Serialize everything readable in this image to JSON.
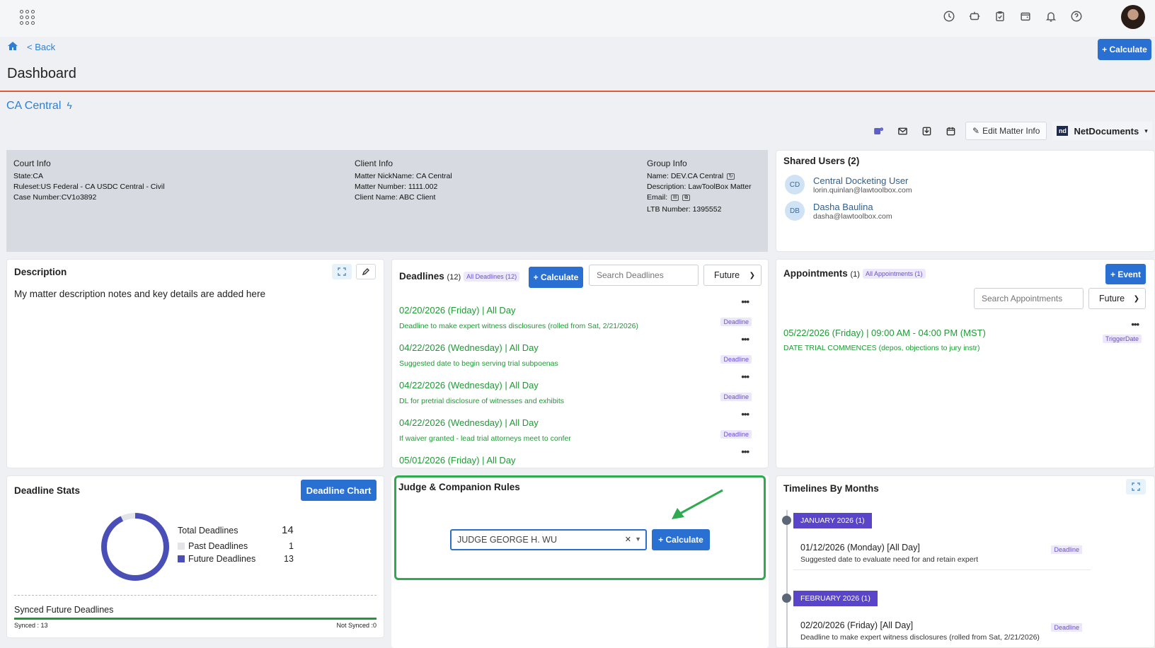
{
  "header": {
    "back_label": "< Back",
    "calculate_label": "+ Calculate",
    "page_title": "Dashboard",
    "matter_title": "CA Central",
    "icons": [
      "clock-icon",
      "robot-icon",
      "clipboard-icon",
      "wallet-icon",
      "bell-icon",
      "help-icon"
    ]
  },
  "actions": {
    "edit_label": "Edit Matter Info",
    "nd_logo": "nd",
    "nd_label": "NetDocuments"
  },
  "info": {
    "court": {
      "heading": "Court Info",
      "state": "State:CA",
      "ruleset": "Ruleset:US Federal - CA USDC Central - Civil",
      "case_number": "Case Number:CV1o3892"
    },
    "client": {
      "heading": "Client Info",
      "nickname": "Matter NickName: CA Central",
      "matter_number": "Matter Number: 1111.002",
      "client_name": "Client Name: ABC Client"
    },
    "group": {
      "heading": "Group Info",
      "name": "Name: DEV.CA Central",
      "description": "Description: LawToolBox Matter",
      "email": "Email:",
      "ltb_number": "LTB Number: 1395552"
    }
  },
  "shared_users": {
    "title": "Shared Users",
    "count": "(2)",
    "users": [
      {
        "initials": "CD",
        "name": "Central Docketing User",
        "email": "lorin.quinlan@lawtoolbox.com"
      },
      {
        "initials": "DB",
        "name": "Dasha Baulina",
        "email": "dasha@lawtoolbox.com"
      }
    ]
  },
  "description": {
    "title": "Description",
    "text": "My matter description notes and key details are added here"
  },
  "deadlines": {
    "title": "Deadlines",
    "count": "(12)",
    "all_pill": "All Deadlines (12)",
    "calc_label": "+ Calculate",
    "search_placeholder": "Search Deadlines",
    "filter": "Future",
    "items": [
      {
        "date": "02/20/2026 (Friday)  |   All Day",
        "desc": "Deadline to make expert witness disclosures (rolled from Sat, 2/21/2026)",
        "tag": "Deadline"
      },
      {
        "date": "04/22/2026 (Wednesday)  |   All Day",
        "desc": "Suggested date to begin serving trial subpoenas",
        "tag": "Deadline"
      },
      {
        "date": "04/22/2026 (Wednesday)  |   All Day",
        "desc": "DL for pretrial disclosure of witnesses and exhibits",
        "tag": "Deadline"
      },
      {
        "date": "04/22/2026 (Wednesday)  |   All Day",
        "desc": "If waiver granted - lead trial attorneys meet to confer",
        "tag": "Deadline"
      },
      {
        "date": "05/01/2026 (Friday)  |   All Day",
        "desc": "",
        "tag": ""
      }
    ]
  },
  "appointments": {
    "title": "Appointments",
    "count": "(1)",
    "all_pill": "All Appointments (1)",
    "event_label": "+ Event",
    "search_placeholder": "Search Appointments",
    "filter": "Future",
    "items": [
      {
        "date": "05/22/2026 (Friday)  |   09:00 AM - 04:00 PM (MST)",
        "desc": "DATE TRIAL COMMENCES (depos, objections to jury instr)",
        "tag": "TriggerDate"
      }
    ]
  },
  "stats": {
    "title": "Deadline Stats",
    "chart_button": "Deadline Chart",
    "total_label": "Total Deadlines",
    "total_value": "14",
    "past_label": "Past Deadlines",
    "past_value": "1",
    "future_label": "Future Deadlines",
    "future_value": "13",
    "synced_title": "Synced Future Deadlines",
    "synced_label": "Synced : 13",
    "not_synced_label": "Not Synced :0",
    "synced_fraction": 1.0,
    "colors": {
      "past": "#e2e4e8",
      "future": "#4a4fb8",
      "synced": "#1e9a35"
    }
  },
  "judge": {
    "title": "Judge & Companion Rules",
    "selected": "JUDGE GEORGE H. WU",
    "calc_label": "+ Calculate"
  },
  "timelines": {
    "title": "Timelines By Months",
    "months": [
      {
        "label": "JANUARY  2026  (1)",
        "title": "01/12/2026 (Monday) [All Day]",
        "desc": "Suggested date to evaluate need for and retain expert",
        "tag": "Deadline"
      },
      {
        "label": "FEBRUARY  2026  (1)",
        "title": "02/20/2026 (Friday) [All Day]",
        "desc": "Deadline to make expert witness disclosures (rolled from Sat, 2/21/2026)",
        "tag": "Deadline"
      }
    ]
  }
}
